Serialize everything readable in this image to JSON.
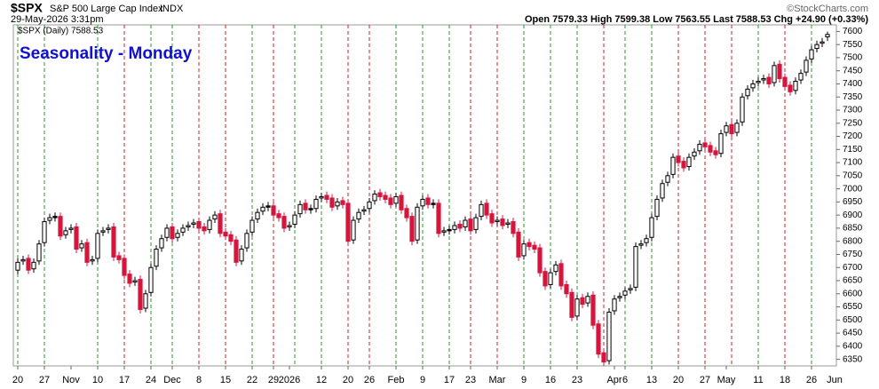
{
  "chart_data": {
    "type": "candlestick",
    "symbol": "$SPX",
    "name": "S&P 500 Large Cap Index",
    "exchange": "INDX",
    "timestamp": "29-May-2026 3:31pm",
    "quote": "Open 7579.33  High 7599.38  Low 7563.55  Last 7588.53  Chg +24.90 (+0.33%)",
    "source": "©StockCharts.com",
    "legend": "$SPX (Daily) 7588.53",
    "title": "Seasonality - Monday",
    "categories": [
      "20",
      null,
      null,
      null,
      null,
      "27",
      null,
      null,
      null,
      null,
      "Nov",
      null,
      null,
      null,
      null,
      "10",
      null,
      null,
      null,
      null,
      "17",
      null,
      null,
      null,
      null,
      "24",
      null,
      null,
      null,
      "Dec",
      null,
      null,
      null,
      null,
      "8",
      null,
      null,
      null,
      null,
      "15",
      null,
      null,
      null,
      null,
      "22",
      null,
      null,
      null,
      "29",
      null,
      null,
      "2026",
      null,
      null,
      null,
      null,
      null,
      "12",
      null,
      null,
      null,
      null,
      "20",
      null,
      null,
      null,
      "26",
      null,
      null,
      null,
      null,
      "Feb",
      null,
      null,
      null,
      null,
      "9",
      null,
      null,
      null,
      null,
      "17",
      null,
      null,
      null,
      "23",
      null,
      null,
      null,
      null,
      "Mar",
      null,
      null,
      null,
      null,
      "9",
      null,
      null,
      null,
      null,
      "16",
      null,
      null,
      null,
      null,
      "23",
      null,
      null,
      null,
      null,
      null,
      null,
      "Apr",
      null,
      "6",
      null,
      null,
      null,
      null,
      "13",
      null,
      null,
      null,
      null,
      "20",
      null,
      null,
      null,
      null,
      "27",
      null,
      null,
      null,
      "May",
      null,
      null,
      null,
      null,
      null,
      "11",
      null,
      null,
      null,
      null,
      "18",
      null,
      null,
      null,
      null,
      "26",
      null,
      null,
      null
    ],
    "x_end_label": "Jun",
    "open": [
      6690,
      6725,
      6735,
      6695,
      6725,
      6795,
      6880,
      6895,
      6895,
      6825,
      6845,
      6855,
      6775,
      6795,
      6725,
      6735,
      6835,
      6845,
      6855,
      6745,
      6735,
      6675,
      6645,
      6655,
      6545,
      6605,
      6705,
      6775,
      6815,
      6855,
      6815,
      6835,
      6855,
      6865,
      6875,
      6855,
      6845,
      6885,
      6905,
      6835,
      6825,
      6805,
      6725,
      6775,
      6835,
      6885,
      6915,
      6935,
      6935,
      6905,
      6895,
      6855,
      6865,
      6905,
      6945,
      6925,
      6925,
      6965,
      6975,
      6965,
      6935,
      6955,
      6945,
      6805,
      6885,
      6915,
      6925,
      6955,
      6985,
      6975,
      6965,
      6945,
      6975,
      6925,
      6895,
      6805,
      6935,
      6965,
      6945,
      6945,
      6835,
      6845,
      6845,
      6865,
      6855,
      6885,
      6845,
      6895,
      6945,
      6905,
      6875,
      6885,
      6865,
      6875,
      6835,
      6745,
      6795,
      6785,
      6775,
      6685,
      6635,
      6685,
      6715,
      6635,
      6605,
      6515,
      6585,
      6565,
      6595,
      6485,
      6375,
      6345,
      6535,
      6585,
      6595,
      6615,
      6625,
      6785,
      6795,
      6815,
      6895,
      6965,
      7025,
      7055,
      7125,
      7105,
      7085,
      7125,
      7145,
      7175,
      7165,
      7145,
      7135,
      7215,
      7245,
      7215,
      7255,
      7355,
      7385,
      7405,
      7415,
      7425,
      7405,
      7475,
      7425,
      7395,
      7375,
      7415,
      7445,
      7495,
      7535,
      7555,
      7579.33
    ],
    "high": [
      6735,
      6745,
      6750,
      6735,
      6805,
      6890,
      6905,
      6910,
      6910,
      6855,
      6865,
      6870,
      6805,
      6810,
      6745,
      6845,
      6855,
      6865,
      6870,
      6760,
      6750,
      6690,
      6665,
      6670,
      6615,
      6715,
      6785,
      6825,
      6865,
      6870,
      6845,
      6865,
      6875,
      6885,
      6890,
      6870,
      6895,
      6915,
      6920,
      6850,
      6840,
      6820,
      6785,
      6845,
      6895,
      6925,
      6945,
      6950,
      6950,
      6920,
      6910,
      6875,
      6915,
      6955,
      6960,
      6940,
      6975,
      6985,
      6990,
      6980,
      6965,
      6970,
      6960,
      6895,
      6925,
      6935,
      6965,
      6995,
      7000,
      6990,
      6980,
      6985,
      6990,
      6940,
      6910,
      6945,
      6975,
      6980,
      6960,
      6960,
      6855,
      6860,
      6875,
      6880,
      6895,
      6900,
      6905,
      6955,
      6960,
      6920,
      6895,
      6900,
      6885,
      6890,
      6850,
      6805,
      6810,
      6800,
      6790,
      6700,
      6695,
      6725,
      6730,
      6650,
      6620,
      6595,
      6600,
      6605,
      6610,
      6500,
      6390,
      6545,
      6595,
      6605,
      6625,
      6635,
      6795,
      6805,
      6825,
      6905,
      6975,
      7035,
      7065,
      7135,
      7140,
      7120,
      7135,
      7155,
      7185,
      7190,
      7180,
      7160,
      7225,
      7255,
      7260,
      7265,
      7365,
      7395,
      7415,
      7425,
      7435,
      7440,
      7485,
      7490,
      7440,
      7410,
      7425,
      7455,
      7505,
      7545,
      7565,
      7575,
      7599.38
    ],
    "low": [
      6675,
      6710,
      6675,
      6680,
      6710,
      6780,
      6865,
      6875,
      6805,
      6810,
      6830,
      6755,
      6760,
      6705,
      6710,
      6720,
      6820,
      6830,
      6725,
      6715,
      6655,
      6625,
      6630,
      6525,
      6530,
      6590,
      6690,
      6760,
      6800,
      6795,
      6800,
      6820,
      6840,
      6850,
      6835,
      6825,
      6830,
      6870,
      6815,
      6805,
      6785,
      6705,
      6710,
      6760,
      6820,
      6870,
      6900,
      6915,
      6885,
      6875,
      6835,
      6840,
      6850,
      6890,
      6905,
      6905,
      6910,
      6950,
      6945,
      6915,
      6920,
      6925,
      6785,
      6790,
      6870,
      6900,
      6910,
      6940,
      6955,
      6945,
      6925,
      6930,
      6905,
      6875,
      6785,
      6790,
      6920,
      6925,
      6925,
      6815,
      6820,
      6825,
      6830,
      6835,
      6840,
      6825,
      6830,
      6880,
      6885,
      6855,
      6860,
      6845,
      6850,
      6815,
      6725,
      6730,
      6765,
      6755,
      6665,
      6615,
      6620,
      6670,
      6615,
      6585,
      6495,
      6500,
      6545,
      6550,
      6465,
      6355,
      6325,
      6330,
      6520,
      6570,
      6580,
      6600,
      6610,
      6770,
      6780,
      6800,
      6880,
      6950,
      7010,
      7040,
      7085,
      7065,
      7070,
      7110,
      7130,
      7145,
      7125,
      7115,
      7120,
      7200,
      7195,
      7200,
      7240,
      7340,
      7370,
      7390,
      7400,
      7385,
      7390,
      7405,
      7375,
      7355,
      7360,
      7400,
      7430,
      7480,
      7520,
      7540,
      7563.55
    ],
    "close": [
      6720,
      6730,
      6690,
      6720,
      6790,
      6875,
      6890,
      6890,
      6820,
      6840,
      6850,
      6770,
      6790,
      6720,
      6730,
      6830,
      6840,
      6850,
      6740,
      6730,
      6670,
      6640,
      6650,
      6540,
      6600,
      6700,
      6770,
      6810,
      6850,
      6810,
      6830,
      6850,
      6860,
      6870,
      6850,
      6840,
      6880,
      6900,
      6830,
      6820,
      6800,
      6720,
      6770,
      6830,
      6880,
      6910,
      6930,
      6930,
      6900,
      6890,
      6850,
      6860,
      6900,
      6940,
      6920,
      6920,
      6960,
      6970,
      6960,
      6930,
      6950,
      6940,
      6800,
      6880,
      6910,
      6920,
      6950,
      6980,
      6970,
      6960,
      6940,
      6970,
      6920,
      6890,
      6800,
      6930,
      6960,
      6940,
      6940,
      6830,
      6840,
      6840,
      6860,
      6850,
      6880,
      6840,
      6890,
      6940,
      6900,
      6870,
      6880,
      6860,
      6870,
      6830,
      6740,
      6790,
      6780,
      6770,
      6680,
      6630,
      6680,
      6710,
      6630,
      6600,
      6510,
      6580,
      6560,
      6590,
      6480,
      6370,
      6340,
      6530,
      6580,
      6590,
      6610,
      6620,
      6780,
      6790,
      6810,
      6890,
      6960,
      7020,
      7050,
      7120,
      7100,
      7080,
      7120,
      7140,
      7170,
      7160,
      7140,
      7130,
      7210,
      7240,
      7210,
      7250,
      7350,
      7380,
      7400,
      7410,
      7420,
      7400,
      7470,
      7420,
      7390,
      7370,
      7410,
      7440,
      7490,
      7530,
      7550,
      7560,
      7588.53
    ],
    "up_color": "#000000",
    "down_color": "#d7143c",
    "ylim": [
      6325,
      7625
    ],
    "yticks": [
      6350,
      6400,
      6450,
      6500,
      6550,
      6600,
      6650,
      6700,
      6750,
      6800,
      6850,
      6900,
      6950,
      7000,
      7050,
      7100,
      7150,
      7200,
      7250,
      7300,
      7350,
      7400,
      7450,
      7500,
      7550,
      7600
    ],
    "y_axis_side": "right"
  }
}
